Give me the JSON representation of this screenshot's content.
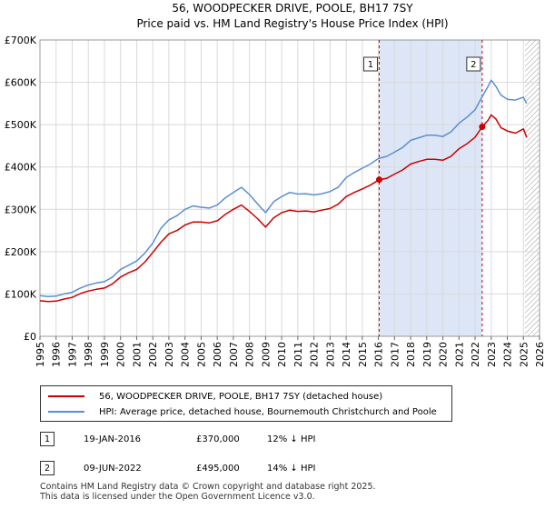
{
  "chart_data": {
    "type": "line",
    "title": "56, WOODPECKER DRIVE, POOLE, BH17 7SY",
    "subtitle": "Price paid vs. HM Land Registry's House Price Index (HPI)",
    "xlabel": "",
    "ylabel": "",
    "xlim": [
      1995,
      2026
    ],
    "ylim": [
      0,
      700000
    ],
    "y_ticks": [
      0,
      100000,
      200000,
      300000,
      400000,
      500000,
      600000,
      700000
    ],
    "y_tick_labels": [
      "£0",
      "£100K",
      "£200K",
      "£300K",
      "£400K",
      "£500K",
      "£600K",
      "£700K"
    ],
    "x_ticks": [
      1995,
      1996,
      1997,
      1998,
      1999,
      2000,
      2001,
      2002,
      2003,
      2004,
      2005,
      2006,
      2007,
      2008,
      2009,
      2010,
      2011,
      2012,
      2013,
      2014,
      2015,
      2016,
      2017,
      2018,
      2019,
      2020,
      2021,
      2022,
      2023,
      2024,
      2025,
      2026
    ],
    "x_tick_labels": [
      "1995",
      "1996",
      "1997",
      "1998",
      "1999",
      "2000",
      "2001",
      "2002",
      "2003",
      "2004",
      "2005",
      "2006",
      "2007",
      "2008",
      "2009",
      "2010",
      "2011",
      "2012",
      "2013",
      "2014",
      "2015",
      "2016",
      "2017",
      "2018",
      "2019",
      "2020",
      "2021",
      "2022",
      "2023",
      "2024",
      "2025",
      "2026"
    ],
    "grid": true,
    "shaded_ranges": [
      {
        "from": 2016.05,
        "to": 2022.44,
        "color": "#dde6f7"
      }
    ],
    "hatched_from": 2025.1,
    "series": [
      {
        "name": "56, WOODPECKER DRIVE, POOLE, BH17 7SY (detached house)",
        "color": "#cc0000",
        "x": [
          1995.0,
          1995.5,
          1996.0,
          1996.5,
          1997.0,
          1997.5,
          1998.0,
          1998.5,
          1999.0,
          1999.5,
          2000.0,
          2000.5,
          2001.0,
          2001.5,
          2002.0,
          2002.5,
          2003.0,
          2003.5,
          2004.0,
          2004.5,
          2005.0,
          2005.5,
          2006.0,
          2006.5,
          2007.0,
          2007.5,
          2008.0,
          2008.5,
          2009.0,
          2009.5,
          2010.0,
          2010.5,
          2011.0,
          2011.5,
          2012.0,
          2012.5,
          2013.0,
          2013.5,
          2014.0,
          2014.5,
          2015.0,
          2015.5,
          2016.05,
          2016.5,
          2017.0,
          2017.5,
          2018.0,
          2018.5,
          2019.0,
          2019.5,
          2020.0,
          2020.5,
          2021.0,
          2021.5,
          2022.0,
          2022.44,
          2022.8,
          2023.0,
          2023.3,
          2023.6,
          2024.0,
          2024.5,
          2025.0,
          2025.2
        ],
        "values": [
          84000,
          82000,
          83000,
          88000,
          92000,
          101000,
          107000,
          111000,
          114000,
          124000,
          140000,
          150000,
          158000,
          175000,
          198000,
          222000,
          242000,
          250000,
          263000,
          270000,
          270000,
          268000,
          273000,
          288000,
          300000,
          310000,
          295000,
          278000,
          258000,
          280000,
          292000,
          298000,
          295000,
          296000,
          294000,
          298000,
          302000,
          312000,
          330000,
          340000,
          348000,
          357000,
          370000,
          373000,
          383000,
          393000,
          407000,
          413000,
          418000,
          418000,
          416000,
          425000,
          443000,
          455000,
          470000,
          495000,
          510000,
          523000,
          513000,
          493000,
          485000,
          480000,
          490000,
          470000
        ]
      },
      {
        "name": "HPI: Average price, detached house, Bournemouth Christchurch and Poole",
        "color": "#5b8fd0",
        "x": [
          1995.0,
          1995.5,
          1996.0,
          1996.5,
          1997.0,
          1997.5,
          1998.0,
          1998.5,
          1999.0,
          1999.5,
          2000.0,
          2000.5,
          2001.0,
          2001.5,
          2002.0,
          2002.5,
          2003.0,
          2003.5,
          2004.0,
          2004.5,
          2005.0,
          2005.5,
          2006.0,
          2006.5,
          2007.0,
          2007.5,
          2008.0,
          2008.5,
          2009.0,
          2009.5,
          2010.0,
          2010.5,
          2011.0,
          2011.5,
          2012.0,
          2012.5,
          2013.0,
          2013.5,
          2014.0,
          2014.5,
          2015.0,
          2015.5,
          2016.0,
          2016.5,
          2017.0,
          2017.5,
          2018.0,
          2018.5,
          2019.0,
          2019.5,
          2020.0,
          2020.5,
          2021.0,
          2021.5,
          2022.0,
          2022.5,
          2022.8,
          2023.0,
          2023.3,
          2023.6,
          2024.0,
          2024.5,
          2025.0,
          2025.2
        ],
        "values": [
          96000,
          94000,
          95000,
          100000,
          104000,
          114000,
          121000,
          126000,
          129000,
          140000,
          158000,
          168000,
          178000,
          196000,
          220000,
          255000,
          275000,
          285000,
          300000,
          308000,
          305000,
          303000,
          310000,
          327000,
          340000,
          352000,
          335000,
          313000,
          292000,
          318000,
          330000,
          340000,
          336000,
          337000,
          334000,
          337000,
          342000,
          352000,
          375000,
          387000,
          397000,
          407000,
          420000,
          425000,
          435000,
          446000,
          463000,
          469000,
          475000,
          475000,
          472000,
          483000,
          503000,
          518000,
          535000,
          570000,
          590000,
          605000,
          590000,
          570000,
          560000,
          558000,
          565000,
          550000
        ]
      }
    ],
    "annotations": [
      {
        "label": "1",
        "x": 2016.05,
        "y": 370000
      },
      {
        "label": "2",
        "x": 2022.44,
        "y": 495000
      }
    ]
  },
  "legend": {
    "items": [
      {
        "label": "56, WOODPECKER DRIVE, POOLE, BH17 7SY (detached house)",
        "color": "#cc0000"
      },
      {
        "label": "HPI: Average price, detached house, Bournemouth Christchurch and Poole",
        "color": "#5b8fd0"
      }
    ]
  },
  "sales": [
    {
      "num": "1",
      "date": "19-JAN-2016",
      "price": "£370,000",
      "delta": "12% ↓ HPI"
    },
    {
      "num": "2",
      "date": "09-JUN-2022",
      "price": "£495,000",
      "delta": "14% ↓ HPI"
    }
  ],
  "footer": {
    "line1": "Contains HM Land Registry data © Crown copyright and database right 2025.",
    "line2": "This data is licensed under the Open Government Licence v3.0."
  }
}
